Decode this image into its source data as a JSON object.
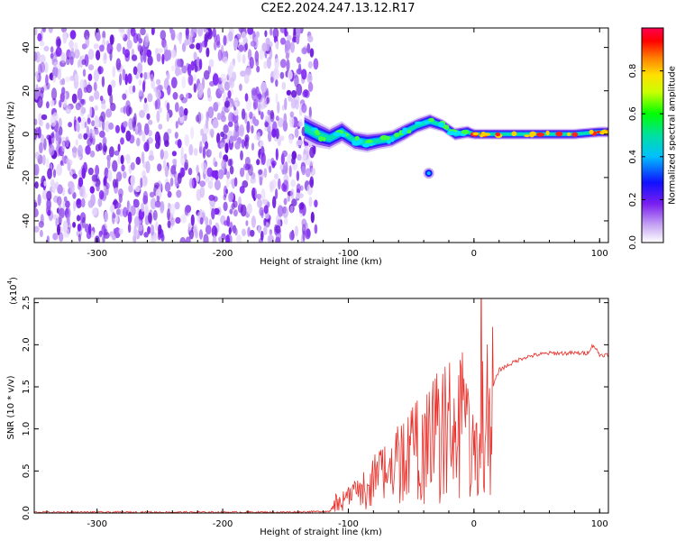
{
  "title": "C2E2.2024.247.13.12.R17",
  "chart_data": [
    {
      "type": "heatmap",
      "title": "C2E2.2024.247.13.12.R17",
      "xlabel": "Height of straight line (km)",
      "ylabel": "Frequency (Hz)",
      "xlim": [
        -350,
        107
      ],
      "ylim": [
        -50,
        49
      ],
      "xticks": [
        -300,
        -200,
        -100,
        0,
        100
      ],
      "xtick_labels": [
        "-300",
        "-200",
        "-100",
        "0",
        "100"
      ],
      "yticks": [
        -40,
        -20,
        0,
        20,
        40
      ],
      "ytick_labels": [
        "-40",
        "-20",
        "0",
        "20",
        "40"
      ],
      "noise_region_x": [
        -350,
        -130
      ],
      "signal_track": {
        "x": [
          -135,
          -125,
          -115,
          -105,
          -95,
          -85,
          -75,
          -65,
          -55,
          -45,
          -35,
          -25,
          -15,
          -5,
          0,
          10,
          20,
          40,
          60,
          80,
          100,
          107
        ],
        "freq": [
          3,
          0,
          -2,
          1,
          -3,
          -4,
          -3,
          -2,
          1,
          4,
          6,
          4,
          0,
          1,
          0,
          0,
          0,
          0,
          0,
          0,
          1,
          1
        ],
        "width": [
          12,
          12,
          10,
          10,
          9,
          9,
          8,
          8,
          8,
          7,
          7,
          6,
          6,
          6,
          5,
          5,
          5,
          5,
          5,
          5,
          5,
          5
        ]
      },
      "blob": {
        "x": -36,
        "freq": -18
      },
      "colorbar": {
        "label": "Normalized spectral amplitude",
        "ticks": [
          0.0,
          0.2,
          0.4,
          0.6,
          0.8
        ],
        "tick_labels": [
          "0.0",
          "0.2",
          "0.4",
          "0.6",
          "0.8"
        ],
        "range": [
          0,
          1
        ]
      }
    },
    {
      "type": "line",
      "xlabel": "Height of straight line (km)",
      "ylabel": "SNR (10 * v/v)",
      "scale_label": "(x10",
      "scale_exponent": "4",
      "scale_suffix": ")",
      "xlim": [
        -350,
        107
      ],
      "ylim": [
        0,
        2.55
      ],
      "xticks": [
        -300,
        -200,
        -100,
        0,
        100
      ],
      "xtick_labels": [
        "-300",
        "-200",
        "-100",
        "0",
        "100"
      ],
      "yticks": [
        0.0,
        0.5,
        1.0,
        1.5,
        2.0,
        2.5
      ],
      "ytick_labels": [
        "0.0",
        "0.5",
        "1.0",
        "1.5",
        "2.0",
        "2.5"
      ],
      "series": [
        {
          "name": "SNR",
          "color": "#e8302a",
          "x": [
            -350,
            -250,
            -150,
            -115,
            -110,
            -100,
            -90,
            -80,
            -70,
            -60,
            -50,
            -40,
            -30,
            -20,
            -15,
            -10,
            -5,
            0,
            5,
            6,
            8,
            10,
            15,
            20,
            30,
            40,
            50,
            60,
            70,
            80,
            90,
            95,
            100,
            107
          ],
          "y": [
            0.01,
            0.01,
            0.01,
            0.02,
            0.15,
            0.2,
            0.3,
            0.45,
            0.55,
            0.7,
            0.8,
            0.95,
            1.1,
            1.2,
            1.0,
            1.35,
            1.1,
            0.8,
            0.6,
            2.55,
            0.1,
            1.3,
            1.5,
            1.7,
            1.78,
            1.85,
            1.88,
            1.9,
            1.9,
            1.9,
            1.9,
            2.0,
            1.88,
            1.88
          ]
        }
      ]
    }
  ]
}
